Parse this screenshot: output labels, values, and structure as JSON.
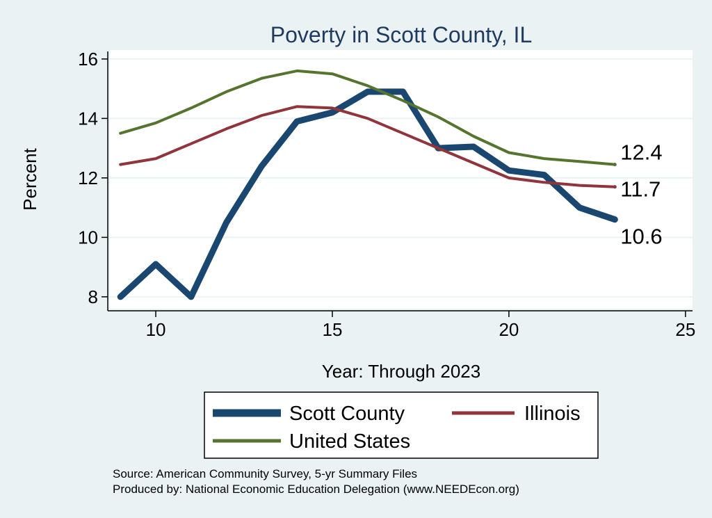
{
  "chart_data": {
    "type": "line",
    "title": "Poverty in Scott County, IL",
    "xlabel": "Year: Through 2023",
    "ylabel": "Percent",
    "xlim": [
      8.7,
      25.2
    ],
    "ylim": [
      7.6,
      16.3
    ],
    "xticks": [
      10,
      15,
      20,
      25
    ],
    "yticks": [
      8,
      10,
      12,
      14,
      16
    ],
    "grid": true,
    "legend_position": "bottom",
    "x": [
      9,
      10,
      11,
      12,
      13,
      14,
      15,
      16,
      17,
      18,
      19,
      20,
      21,
      22,
      23
    ],
    "series": [
      {
        "name": "Scott County",
        "color": "#1a476f",
        "values": [
          8.0,
          9.1,
          8.0,
          10.5,
          12.4,
          13.9,
          14.2,
          14.9,
          14.9,
          13.0,
          13.05,
          12.25,
          12.1,
          11.0,
          10.6
        ],
        "end_label": "10.6"
      },
      {
        "name": "Illinois",
        "color": "#90353b",
        "values": [
          12.45,
          12.65,
          13.15,
          13.65,
          14.1,
          14.4,
          14.35,
          14.0,
          13.5,
          13.0,
          12.5,
          12.0,
          11.85,
          11.75,
          11.7
        ],
        "end_label": "11.7"
      },
      {
        "name": "United States",
        "color": "#55752f",
        "values": [
          13.5,
          13.85,
          14.35,
          14.9,
          15.35,
          15.6,
          15.5,
          15.1,
          14.6,
          14.05,
          13.4,
          12.85,
          12.65,
          12.55,
          12.45
        ],
        "end_label": "12.4"
      }
    ]
  },
  "notes": {
    "source": "Source: American Community Survey, 5-yr Summary Files",
    "produced": "Produced by: National Economic Education Delegation (www.NEEDEcon.org)"
  }
}
